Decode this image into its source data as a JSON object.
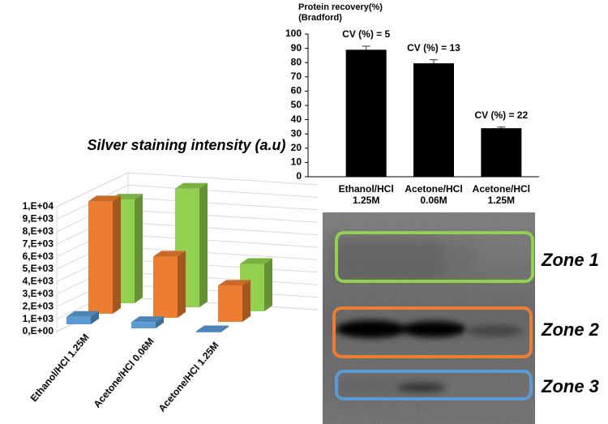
{
  "chart_data": [
    {
      "type": "bar3d",
      "title": "Silver staining intensity (a.u)",
      "categories": [
        "Ethanol/HCl 1.25M",
        "Acetone/HCl 0.06M",
        "Acetone/HCl 1.25M"
      ],
      "series": [
        {
          "name": "Zone 1",
          "color": "#92d050",
          "values": [
            8300,
            9500,
            3800
          ]
        },
        {
          "name": "Zone 2",
          "color": "#ed7d31",
          "values": [
            9000,
            4900,
            2900
          ]
        },
        {
          "name": "Zone 3",
          "color": "#5b9bd5",
          "values": [
            600,
            500,
            100
          ]
        }
      ],
      "ylim": [
        0,
        10000
      ],
      "yticks": [
        {
          "value": 0,
          "label": "0,E+00"
        },
        {
          "value": 1000,
          "label": "1,E+03"
        },
        {
          "value": 2000,
          "label": "2,E+03"
        },
        {
          "value": 3000,
          "label": "3,E+03"
        },
        {
          "value": 4000,
          "label": "4,E+03"
        },
        {
          "value": 5000,
          "label": "5,E+03"
        },
        {
          "value": 6000,
          "label": "6,E+03"
        },
        {
          "value": 7000,
          "label": "7,E+03"
        },
        {
          "value": 8000,
          "label": "8,E+03"
        },
        {
          "value": 9000,
          "label": "9,E+03"
        },
        {
          "value": 10000,
          "label": "1,E+04"
        }
      ],
      "grid": true
    },
    {
      "type": "bar",
      "title": "Protein recovery(%)",
      "subtitle": "(Bradford)",
      "categories": [
        "Ethanol/HCl 1.25M",
        "Acetone/HCl 0.06M",
        "Acetone/HCl 1.25M"
      ],
      "values": [
        89,
        79.5,
        34
      ],
      "errors": [
        2.5,
        2.5,
        0.8
      ],
      "color": "#000000",
      "annotations": [
        "CV (%) = 5",
        "CV (%) = 13",
        "CV (%) = 22"
      ],
      "ylim": [
        0,
        100
      ],
      "yticks": [
        0,
        10,
        20,
        30,
        40,
        50,
        60,
        70,
        80,
        90,
        100
      ],
      "grid": false
    }
  ]
}
